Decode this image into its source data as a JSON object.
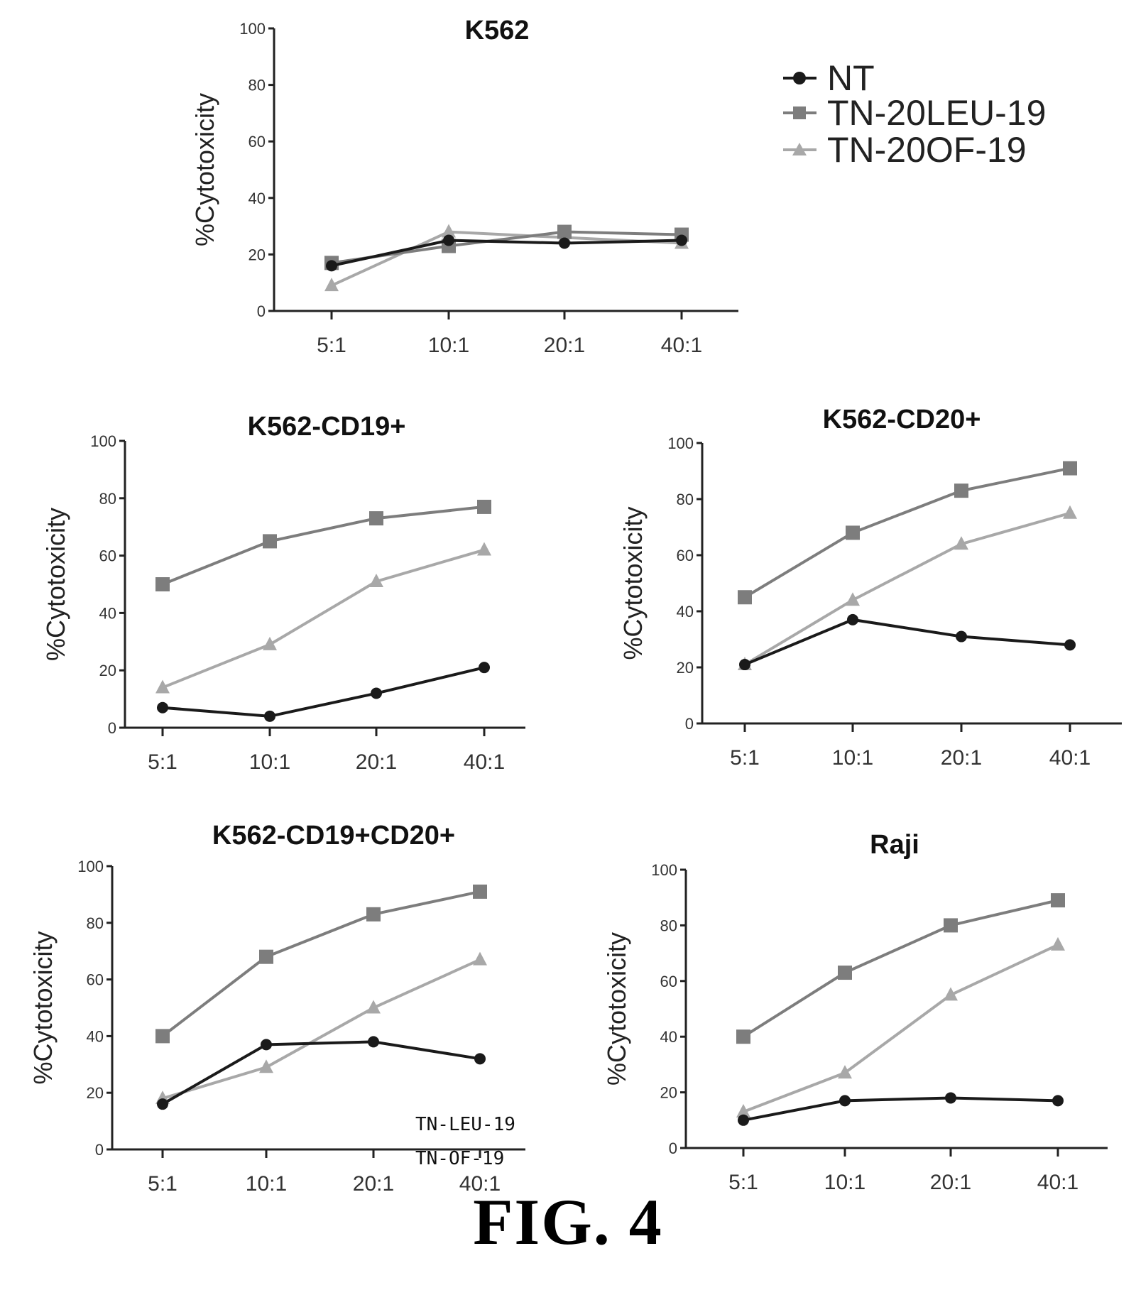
{
  "figure": {
    "caption": "FIG. 4",
    "legend": [
      {
        "label": "NT",
        "marker": "circle",
        "color": "#1a1a1a"
      },
      {
        "label": "TN-20LEU-19",
        "marker": "square",
        "color": "#7d7d7d"
      },
      {
        "label": "TN-20OF-19",
        "marker": "triangle",
        "color": "#a8a8a8"
      }
    ]
  },
  "chart_data": [
    {
      "type": "line",
      "title": "K562",
      "xlabel": "",
      "ylabel": "%Cytotoxicity",
      "categories": [
        "5:1",
        "10:1",
        "20:1",
        "40:1"
      ],
      "ylim": [
        0,
        100
      ],
      "yticks": [
        0,
        20,
        40,
        60,
        80,
        100
      ],
      "grid": false,
      "series": [
        {
          "name": "NT",
          "values": [
            16,
            25,
            24,
            25
          ]
        },
        {
          "name": "TN-20LEU-19",
          "values": [
            17,
            23,
            28,
            27
          ]
        },
        {
          "name": "TN-20OF-19",
          "values": [
            9,
            28,
            26,
            24
          ]
        }
      ]
    },
    {
      "type": "line",
      "title": "K562-CD19+",
      "xlabel": "",
      "ylabel": "%Cytotoxicity",
      "categories": [
        "5:1",
        "10:1",
        "20:1",
        "40:1"
      ],
      "ylim": [
        0,
        100
      ],
      "yticks": [
        0,
        20,
        40,
        60,
        80,
        100
      ],
      "grid": false,
      "series": [
        {
          "name": "NT",
          "values": [
            7,
            4,
            12,
            21
          ]
        },
        {
          "name": "TN-20LEU-19",
          "values": [
            50,
            65,
            73,
            77
          ]
        },
        {
          "name": "TN-20OF-19",
          "values": [
            14,
            29,
            51,
            62
          ]
        }
      ]
    },
    {
      "type": "line",
      "title": "K562-CD20+",
      "xlabel": "",
      "ylabel": "%Cytotoxicity",
      "categories": [
        "5:1",
        "10:1",
        "20:1",
        "40:1"
      ],
      "ylim": [
        0,
        100
      ],
      "yticks": [
        0,
        20,
        40,
        60,
        80,
        100
      ],
      "grid": false,
      "series": [
        {
          "name": "NT",
          "values": [
            21,
            37,
            31,
            28
          ]
        },
        {
          "name": "TN-20LEU-19",
          "values": [
            45,
            68,
            83,
            91
          ]
        },
        {
          "name": "TN-20OF-19",
          "values": [
            21,
            44,
            64,
            75
          ]
        }
      ]
    },
    {
      "type": "line",
      "title": "K562-CD19+CD20+",
      "xlabel": "",
      "ylabel": "%Cytotoxicity",
      "categories": [
        "5:1",
        "10:1",
        "20:1",
        "40:1"
      ],
      "ylim": [
        0,
        100
      ],
      "yticks": [
        0,
        20,
        40,
        60,
        80,
        100
      ],
      "grid": false,
      "annotations": [
        "TN-LEU-19",
        "TN-OF-19"
      ],
      "series": [
        {
          "name": "NT",
          "values": [
            16,
            37,
            38,
            32
          ]
        },
        {
          "name": "TN-20LEU-19",
          "values": [
            40,
            68,
            83,
            91
          ]
        },
        {
          "name": "TN-20OF-19",
          "values": [
            18,
            29,
            50,
            67
          ]
        }
      ]
    },
    {
      "type": "line",
      "title": "Raji",
      "xlabel": "",
      "ylabel": "%Cytotoxicity",
      "categories": [
        "5:1",
        "10:1",
        "20:1",
        "40:1"
      ],
      "ylim": [
        0,
        100
      ],
      "yticks": [
        0,
        20,
        40,
        60,
        80,
        100
      ],
      "grid": false,
      "series": [
        {
          "name": "NT",
          "values": [
            10,
            17,
            18,
            17
          ]
        },
        {
          "name": "TN-20LEU-19",
          "values": [
            40,
            63,
            80,
            89
          ]
        },
        {
          "name": "TN-20OF-19",
          "values": [
            13,
            27,
            55,
            73
          ]
        }
      ]
    }
  ]
}
